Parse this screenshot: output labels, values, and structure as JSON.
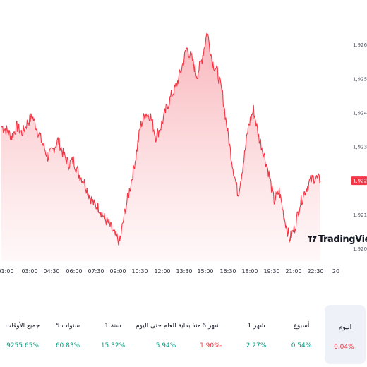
{
  "chart_data": {
    "type": "area",
    "x_ticks": [
      "01:00",
      "03:00",
      "04:30",
      "06:00",
      "07:30",
      "09:00",
      "10:30",
      "12:00",
      "13:30",
      "15:00",
      "16:30",
      "18:00",
      "19:30",
      "21:00",
      "22:30",
      "20"
    ],
    "y_ticks": [
      "1,926.00",
      "1,925.00",
      "1,924.00",
      "1,923.00",
      "1,922.00",
      "1,921.00",
      "1,920.00"
    ],
    "ylim": [
      1919.8,
      1926.7
    ],
    "current_price": "1,922.00",
    "current_value": 1922.0,
    "series": [
      {
        "values": [
          1923.6,
          1923.5,
          1923.3,
          1923.6,
          1923.4,
          1923.7,
          1923.9,
          1923.5,
          1923.1,
          1922.7,
          1922.9,
          1923.2,
          1922.8,
          1922.5,
          1922.6,
          1922.2,
          1922.0,
          1921.6,
          1921.3,
          1921.2,
          1920.9,
          1920.7,
          1920.4,
          1920.2,
          1921.1,
          1921.8,
          1922.6,
          1923.6,
          1924.0,
          1923.9,
          1923.3,
          1923.6,
          1924.1,
          1924.5,
          1924.8,
          1925.3,
          1925.9,
          1925.6,
          1925.1,
          1925.6,
          1926.4,
          1925.5,
          1925.2,
          1924.5,
          1923.4,
          1922.4,
          1921.6,
          1922.5,
          1923.6,
          1924.1,
          1923.3,
          1922.8,
          1922.2,
          1921.4,
          1921.7,
          1920.9,
          1920.3,
          1920.6,
          1921.3,
          1921.7,
          1922.0,
          1922.1,
          1922.0
        ]
      }
    ]
  },
  "logo": {
    "text": "TradingView",
    "icon": "tradingview-logo-icon"
  },
  "periods": [
    {
      "label": "اليوم",
      "value": "0.04%-",
      "trend": "negative",
      "active": true
    },
    {
      "label": "أسبوع",
      "value": "0.54%",
      "trend": "positive"
    },
    {
      "label": "1 شهر",
      "value": "2.27%",
      "trend": "positive"
    },
    {
      "label": "6 شهر",
      "value": "1.90%-",
      "trend": "negative"
    },
    {
      "label": "منذ بداية العام حتى اليوم",
      "value": "5.94%",
      "trend": "positive"
    },
    {
      "label": "1 سنة",
      "value": "15.32%",
      "trend": "positive"
    },
    {
      "label": "5 سنوات",
      "value": "60.83%",
      "trend": "positive"
    },
    {
      "label": "جميع الأوقات",
      "value": "9255.65%",
      "trend": "positive"
    }
  ],
  "colors": {
    "line": "#f23645",
    "area_top": "#f7a9b0",
    "area_bottom": "#fff3f4",
    "positive": "#089981",
    "negative": "#f23645",
    "active_bg": "#eef1f8"
  }
}
